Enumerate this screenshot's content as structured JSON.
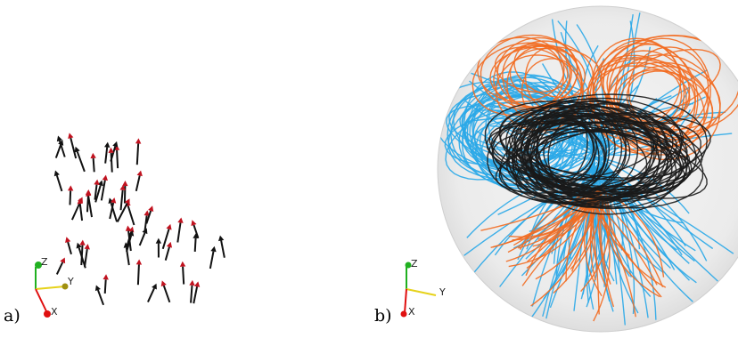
{
  "panels": [
    {
      "label": "a)",
      "triad": {
        "z": "Z",
        "y": "Y",
        "x": "X"
      }
    },
    {
      "label": "b)",
      "triad": {
        "z": "Z",
        "y": "Y",
        "x": "X"
      }
    }
  ],
  "colors": {
    "arrow_head": "#c1121f",
    "arrow_shaft": "#111111",
    "field_line_orange": "#f26b21",
    "field_line_blue": "#2aa9e8",
    "field_line_black": "#1a1a1a",
    "sphere_fill": "#ececec",
    "axis_x": "#e01010",
    "axis_y": "#e6d21a",
    "axis_z": "#20b020"
  }
}
